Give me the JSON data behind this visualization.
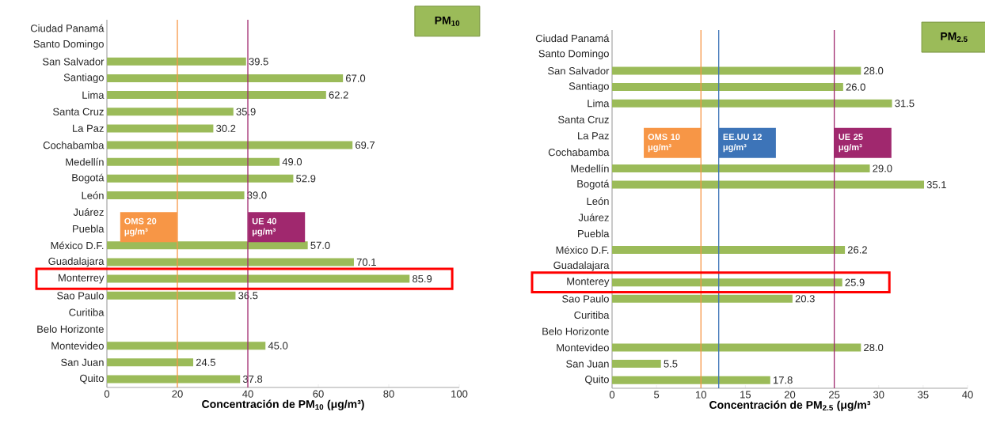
{
  "chart_data": [
    {
      "type": "bar",
      "orientation": "horizontal",
      "title": "PM$_{10}$",
      "xlabel": "Concentración de PM$_{10}$ (μg/m³)",
      "categories": [
        "Ciudad Panamá",
        "Santo Domingo",
        "San Salvador",
        "Santiago",
        "Lima",
        "Santa Cruz",
        "La Paz",
        "Cochabamba",
        "Medellín",
        "Bogotá",
        "León",
        "Juárez",
        "Puebla",
        "México D.F.",
        "Guadalajara",
        "Monterrey",
        "Sao Paulo",
        "Curitiba",
        "Belo Horizonte",
        "Montevideo",
        "San Juan",
        "Quito"
      ],
      "values": [
        null,
        null,
        39.5,
        67.0,
        62.2,
        35.9,
        30.2,
        69.7,
        49.0,
        52.9,
        39.0,
        null,
        null,
        57.0,
        70.1,
        85.9,
        36.5,
        null,
        null,
        45.0,
        24.5,
        37.8
      ],
      "value_labels": [
        null,
        null,
        "39.5",
        "67.0",
        "62.2",
        "35.9",
        "30.2",
        "69.7",
        "49.0",
        "52.9",
        "39.0",
        null,
        null,
        "57.0",
        "70.1",
        "85.9",
        "36.5",
        null,
        null,
        "45.0",
        "24.5",
        "37.8"
      ],
      "color": "#9bbb59",
      "xlim": [
        0,
        100
      ],
      "xticks": [
        0,
        20,
        40,
        60,
        80,
        100
      ],
      "ref_lines": [
        {
          "axis": "x",
          "value": 20,
          "label": "OMS 20 μg/m³",
          "color": "#f79646"
        },
        {
          "axis": "x",
          "value": 40,
          "label": "UE 40 μg/m³",
          "color": "#a0286e"
        }
      ]
    },
    {
      "type": "bar",
      "orientation": "horizontal",
      "title": "PM$_{2.5}$",
      "xlabel": "Concentración de PM$_{2.5}$ (μg/m³",
      "categories": [
        "Ciudad Panamá",
        "Santo Domingo",
        "San Salvador",
        "Santiago",
        "Lima",
        "Santa Cruz",
        "La Paz",
        "Cochabamba",
        "Medellín",
        "Bogotá",
        "León",
        "Juárez",
        "Puebla",
        "México D.F.",
        "Guadalajara",
        "Monterey",
        "Sao Paulo",
        "Curitiba",
        "Belo Horizonte",
        "Montevideo",
        "San Juan",
        "Quito"
      ],
      "values": [
        null,
        null,
        28.0,
        26.0,
        31.5,
        null,
        null,
        null,
        29.0,
        35.1,
        null,
        null,
        null,
        26.2,
        null,
        25.9,
        20.3,
        null,
        null,
        28.0,
        5.5,
        17.8
      ],
      "value_labels": [
        null,
        null,
        "28.0",
        "26.0",
        "31.5",
        null,
        null,
        null,
        "29.0",
        "35.1",
        null,
        null,
        null,
        "26.2",
        null,
        "25.9",
        "20.3",
        null,
        null,
        "28.0",
        "5.5",
        "17.8"
      ],
      "color": "#9bbb59",
      "xlim": [
        0,
        40
      ],
      "xticks": [
        0,
        5,
        10,
        15,
        20,
        25,
        30,
        35,
        40
      ],
      "ref_lines": [
        {
          "axis": "x",
          "value": 10,
          "label": "OMS 10 μg/m³",
          "color": "#f79646"
        },
        {
          "axis": "x",
          "value": 12,
          "label": "EE.UU 12 μg/m³",
          "color": "#3d74b8"
        },
        {
          "axis": "x",
          "value": 25,
          "label": "UE 25 μg/m³",
          "color": "#a0286e"
        }
      ]
    }
  ]
}
